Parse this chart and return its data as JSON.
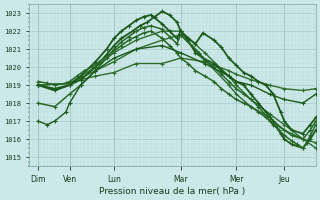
{
  "xlabel": "Pression niveau de la mer( hPa )",
  "background_color": "#cce8e8",
  "grid_major_color": "#aacccc",
  "grid_minor_color": "#bbdddd",
  "ylim": [
    1014.5,
    1023.5
  ],
  "xlim": [
    0,
    155
  ],
  "yticks": [
    1015,
    1016,
    1017,
    1018,
    1019,
    1020,
    1021,
    1022,
    1023
  ],
  "day_labels": [
    "Dim",
    "Ven",
    "Lun",
    "Mar",
    "Mer",
    "Jeu"
  ],
  "day_positions": [
    5,
    22,
    46,
    82,
    112,
    138
  ],
  "series": [
    {
      "color": "#2d6e2d",
      "linewidth": 1.0,
      "x": [
        5,
        22,
        28,
        36,
        46,
        58,
        72,
        82,
        95,
        108,
        112,
        120,
        130,
        138,
        148,
        155
      ],
      "y": [
        1019.0,
        1019.1,
        1019.3,
        1019.5,
        1019.7,
        1020.2,
        1020.2,
        1020.5,
        1020.3,
        1019.8,
        1019.6,
        1019.3,
        1019.0,
        1018.8,
        1018.7,
        1018.8
      ]
    },
    {
      "color": "#2d6e2d",
      "linewidth": 1.0,
      "x": [
        5,
        22,
        28,
        36,
        46,
        58,
        72,
        82,
        95,
        108,
        112,
        120,
        130,
        138,
        148,
        155
      ],
      "y": [
        1019.0,
        1019.1,
        1019.4,
        1019.8,
        1020.3,
        1021.0,
        1021.5,
        1021.8,
        1020.4,
        1019.0,
        1018.5,
        1017.8,
        1017.2,
        1016.5,
        1016.0,
        1015.8
      ]
    },
    {
      "color": "#2d6e2d",
      "linewidth": 1.0,
      "x": [
        5,
        22,
        28,
        36,
        46,
        58,
        72,
        82,
        95,
        108,
        112,
        120,
        130,
        138,
        148,
        155
      ],
      "y": [
        1019.0,
        1019.1,
        1019.5,
        1020.0,
        1020.8,
        1021.5,
        1022.0,
        1022.0,
        1020.8,
        1019.5,
        1019.0,
        1018.2,
        1017.4,
        1016.8,
        1016.0,
        1015.5
      ]
    },
    {
      "color": "#1a5a1a",
      "linewidth": 1.3,
      "x": [
        5,
        14,
        22,
        28,
        36,
        42,
        46,
        50,
        56,
        60,
        64,
        68,
        72,
        76,
        80,
        82,
        86,
        90,
        94,
        100,
        104,
        108,
        112,
        116,
        120,
        124,
        128,
        132,
        136,
        138,
        142,
        148,
        152,
        155
      ],
      "y": [
        1019.0,
        1018.8,
        1019.0,
        1019.3,
        1020.0,
        1020.7,
        1021.2,
        1021.6,
        1022.0,
        1022.3,
        1022.5,
        1022.8,
        1023.1,
        1022.9,
        1022.5,
        1022.0,
        1021.6,
        1021.3,
        1021.9,
        1021.5,
        1021.1,
        1020.5,
        1020.1,
        1019.7,
        1019.5,
        1019.2,
        1019.0,
        1018.5,
        1017.5,
        1017.0,
        1016.5,
        1016.3,
        1016.8,
        1017.2
      ]
    },
    {
      "color": "#1a5a1a",
      "linewidth": 1.3,
      "x": [
        5,
        14,
        22,
        28,
        36,
        42,
        46,
        50,
        54,
        58,
        62,
        66,
        72,
        76,
        80,
        82,
        86,
        90,
        94,
        100,
        104,
        108,
        112,
        116,
        120,
        124,
        128,
        132,
        136,
        138,
        142,
        148,
        152,
        155
      ],
      "y": [
        1019.0,
        1018.7,
        1019.0,
        1019.5,
        1020.3,
        1021.0,
        1021.6,
        1022.0,
        1022.3,
        1022.6,
        1022.8,
        1022.9,
        1022.4,
        1022.0,
        1021.6,
        1022.0,
        1021.5,
        1020.8,
        1020.5,
        1020.2,
        1019.8,
        1019.5,
        1019.2,
        1019.0,
        1018.5,
        1018.0,
        1017.5,
        1017.0,
        1016.3,
        1016.0,
        1015.7,
        1015.5,
        1016.0,
        1016.5
      ]
    },
    {
      "color": "#266626",
      "linewidth": 1.1,
      "x": [
        5,
        14,
        22,
        28,
        36,
        42,
        46,
        50,
        54,
        58,
        62,
        66,
        72,
        76,
        80,
        82,
        88,
        92,
        95,
        100,
        104,
        108,
        112,
        116,
        120,
        124,
        128,
        130,
        132,
        135,
        138,
        142,
        145,
        148,
        150,
        152,
        155
      ],
      "y": [
        1018.0,
        1017.8,
        1018.5,
        1019.0,
        1019.8,
        1020.5,
        1021.0,
        1021.4,
        1021.7,
        1022.0,
        1022.2,
        1022.3,
        1022.1,
        1021.7,
        1021.3,
        1021.8,
        1021.2,
        1020.8,
        1020.4,
        1020.0,
        1019.6,
        1019.2,
        1018.8,
        1018.5,
        1018.2,
        1017.8,
        1017.3,
        1017.0,
        1016.8,
        1016.5,
        1016.2,
        1015.9,
        1015.7,
        1015.5,
        1015.8,
        1016.2,
        1016.8
      ]
    },
    {
      "color": "#266626",
      "linewidth": 1.1,
      "x": [
        5,
        10,
        14,
        20,
        22,
        26,
        30,
        34,
        38,
        42,
        46,
        50,
        54,
        58,
        62,
        66,
        72,
        76,
        80,
        82,
        86,
        90,
        95,
        100,
        104,
        108,
        112,
        116,
        120,
        124,
        128,
        132,
        138,
        142,
        148,
        152,
        155
      ],
      "y": [
        1019.2,
        1019.1,
        1019.0,
        1019.1,
        1019.2,
        1019.5,
        1019.8,
        1020.0,
        1020.3,
        1020.6,
        1020.9,
        1021.2,
        1021.5,
        1021.7,
        1021.9,
        1022.0,
        1021.6,
        1021.2,
        1020.8,
        1020.5,
        1020.2,
        1019.8,
        1019.5,
        1019.2,
        1018.8,
        1018.5,
        1018.2,
        1018.0,
        1017.8,
        1017.5,
        1017.2,
        1016.9,
        1016.5,
        1016.2,
        1016.0,
        1016.5,
        1017.0
      ]
    },
    {
      "color": "#1a5a1a",
      "linewidth": 1.0,
      "x": [
        5,
        10,
        14,
        20,
        22,
        28,
        36,
        46,
        58,
        72,
        82,
        95,
        108,
        112,
        120,
        130,
        138,
        148,
        155
      ],
      "y": [
        1017.0,
        1016.8,
        1017.0,
        1017.5,
        1018.0,
        1019.0,
        1019.8,
        1020.5,
        1021.0,
        1021.2,
        1020.8,
        1020.2,
        1019.5,
        1019.2,
        1019.0,
        1018.5,
        1018.2,
        1018.0,
        1018.5
      ]
    }
  ]
}
